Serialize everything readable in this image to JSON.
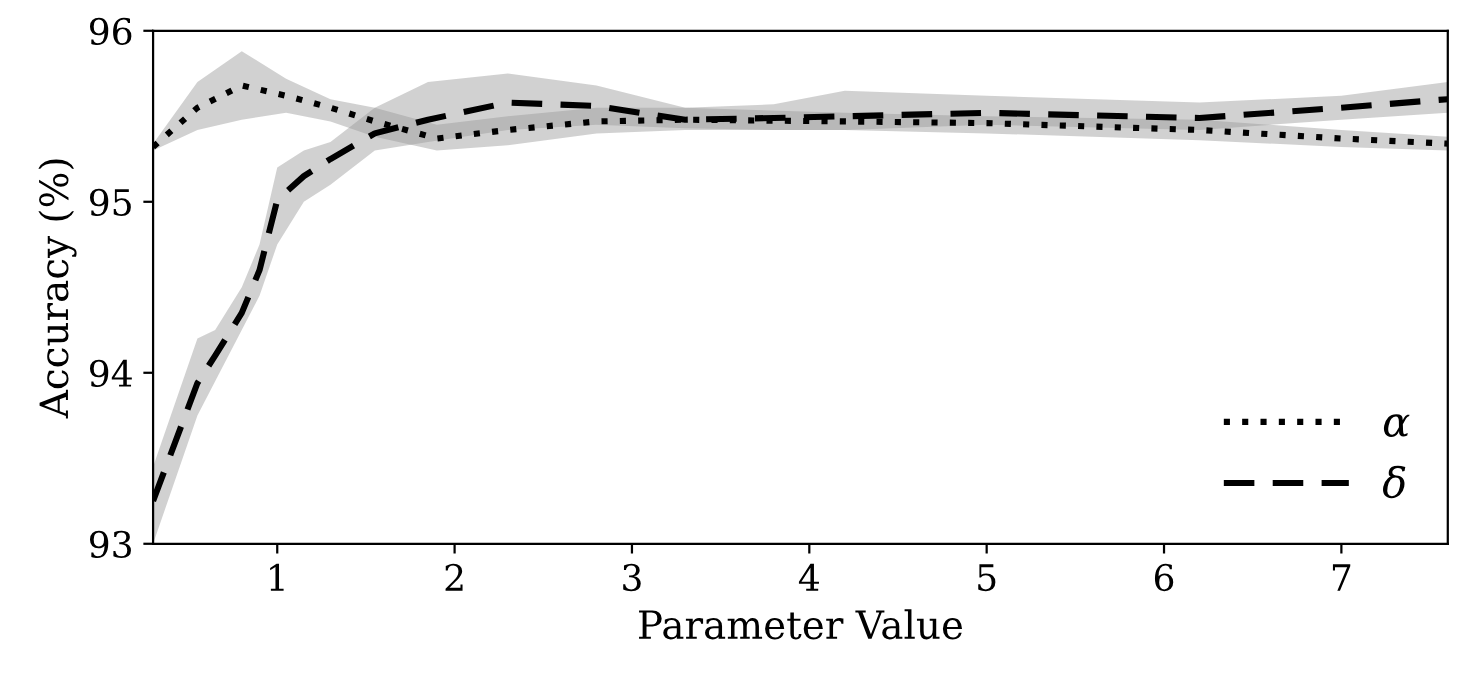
{
  "chart_data": {
    "type": "line",
    "xlabel": "Parameter Value",
    "ylabel": "Accuracy (%)",
    "xlim": [
      0.3,
      7.6
    ],
    "xticks": [
      1,
      2,
      3,
      4,
      5,
      6,
      7
    ],
    "ylim": [
      93,
      96
    ],
    "yticks": [
      93,
      94,
      95,
      96
    ],
    "grid": false,
    "legend": "bottom right",
    "marker": "none",
    "series": [
      {
        "name": "α",
        "color": "#000000",
        "line_style": "dotted",
        "x": [
          0.3,
          0.55,
          0.8,
          1.05,
          1.3,
          1.55,
          1.9,
          2.3,
          2.8,
          3.3,
          4.2,
          5,
          6.2,
          7.0,
          7.6
        ],
        "values": [
          95.32,
          95.55,
          95.68,
          95.62,
          95.55,
          95.47,
          95.37,
          95.42,
          95.47,
          95.48,
          95.47,
          95.46,
          95.42,
          95.37,
          95.34
        ],
        "lower": [
          95.3,
          95.42,
          95.48,
          95.52,
          95.47,
          95.38,
          95.3,
          95.33,
          95.4,
          95.42,
          95.42,
          95.4,
          95.36,
          95.32,
          95.3
        ],
        "upper": [
          95.34,
          95.7,
          95.88,
          95.72,
          95.6,
          95.55,
          95.45,
          95.5,
          95.55,
          95.55,
          95.52,
          95.5,
          95.48,
          95.42,
          95.38
        ]
      },
      {
        "name": "δ",
        "color": "#000000",
        "line_style": "dashed",
        "x": [
          0.3,
          0.55,
          0.65,
          0.8,
          0.9,
          1.0,
          1.15,
          1.3,
          1.55,
          1.85,
          2.3,
          2.8,
          3.3,
          3.8,
          4.2,
          5,
          6.2,
          7,
          7.6
        ],
        "values": [
          93.25,
          93.94,
          94.1,
          94.35,
          94.6,
          95.01,
          95.15,
          95.25,
          95.4,
          95.48,
          95.58,
          95.56,
          95.48,
          95.49,
          95.5,
          95.52,
          95.49,
          95.55,
          95.6
        ],
        "lower": [
          93.0,
          93.75,
          93.95,
          94.25,
          94.45,
          94.75,
          95.0,
          95.1,
          95.3,
          95.35,
          95.42,
          95.45,
          95.43,
          95.42,
          95.42,
          95.45,
          95.42,
          95.48,
          95.52
        ],
        "upper": [
          93.45,
          94.2,
          94.25,
          94.5,
          94.75,
          95.2,
          95.3,
          95.35,
          95.55,
          95.7,
          95.75,
          95.68,
          95.55,
          95.57,
          95.65,
          95.62,
          95.58,
          95.62,
          95.7
        ]
      }
    ]
  }
}
